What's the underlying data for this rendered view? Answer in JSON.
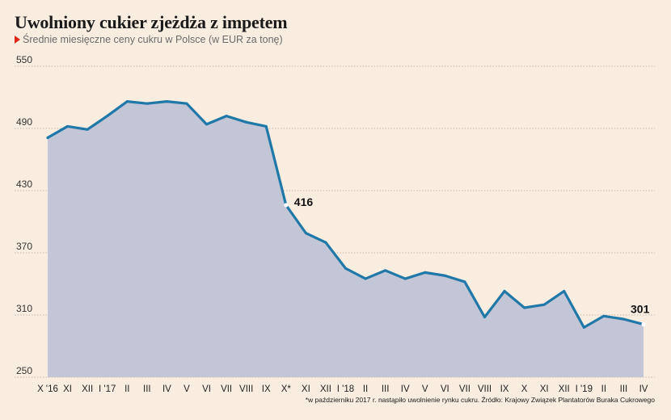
{
  "title": "Uwolniony cukier zjeżdża z impetem",
  "subtitle": "Średnie miesięczne ceny cukru w Polsce (w EUR za tonę)",
  "footnote": "*w październiku 2017 r. nastąpiło uwolnienie rynku cukru. Źródło: Krajowy Związek Plantatorów Buraka Cukrowego",
  "colors": {
    "line": "#1f78a8",
    "area": "#c2c6d6",
    "grid": "#b0a89c",
    "accent": "#e2231a",
    "background": "#f9ede0"
  },
  "chart_data": {
    "type": "area",
    "x": [
      "X '16",
      "XI",
      "XII",
      "I '17",
      "II",
      "III",
      "IV",
      "V",
      "VI",
      "VII",
      "VIII",
      "IX",
      "X*",
      "XI",
      "XII",
      "I '18",
      "II",
      "III",
      "IV",
      "V",
      "VI",
      "VII",
      "VIII",
      "IX",
      "X",
      "XI",
      "XII",
      "I '19",
      "II",
      "III",
      "IV"
    ],
    "series": [
      {
        "values": [
          481,
          492,
          489,
          502,
          516,
          514,
          516,
          514,
          494,
          502,
          496,
          492,
          416,
          389,
          380,
          355,
          345,
          353,
          345,
          351,
          348,
          342,
          308,
          333,
          317,
          320,
          333,
          298,
          309,
          306,
          301
        ]
      }
    ],
    "ylim": [
      250,
      550
    ],
    "yticks": [
      "550",
      "490",
      "430",
      "370",
      "310",
      "250"
    ],
    "grid": true,
    "annotations": [
      {
        "index": 12,
        "label": "416"
      },
      {
        "index": 30,
        "label": "301"
      }
    ]
  }
}
